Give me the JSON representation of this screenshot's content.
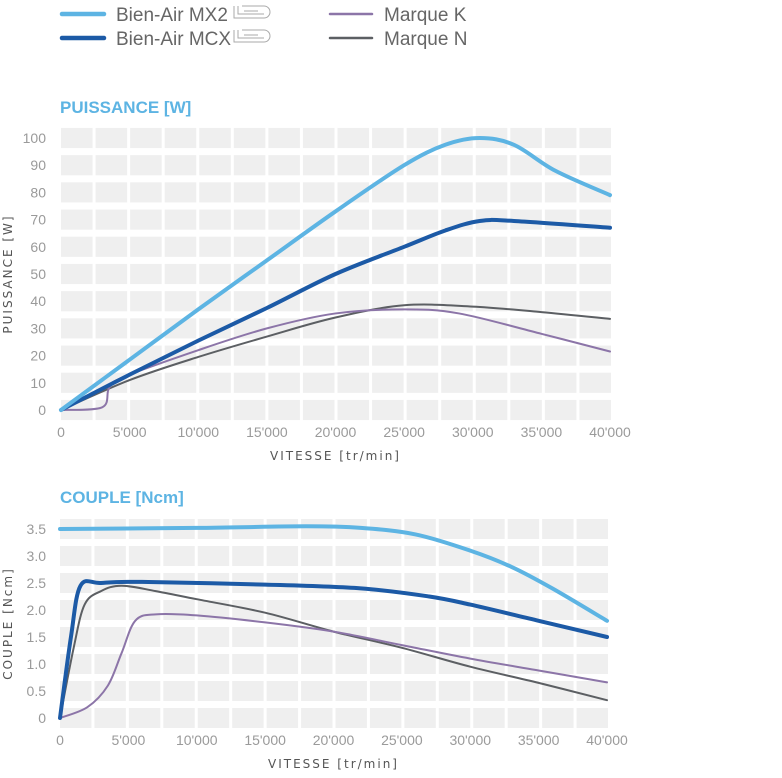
{
  "legend": [
    {
      "label": "Bien-Air MX2",
      "color": "#5db4e3",
      "width": 4,
      "led": true
    },
    {
      "label": "Bien-Air MCX",
      "color": "#1c5aa6",
      "width": 4,
      "led": true
    },
    {
      "label": "Marque K",
      "color": "#8c75a8",
      "width": 2
    },
    {
      "label": "Marque N",
      "color": "#5c5f63",
      "width": 2
    }
  ],
  "chart_data": [
    {
      "type": "line",
      "title": "PUISSANCE [W]",
      "ylabel": "PUISSANCE [W]",
      "xlabel": "VITESSE [tr/min]",
      "xlim": [
        0,
        40000
      ],
      "ylim": [
        0,
        100
      ],
      "yticks": [
        0,
        10,
        20,
        30,
        40,
        50,
        60,
        70,
        80,
        90,
        100
      ],
      "yticklabels": [
        "0",
        "10",
        "20",
        "30",
        "40",
        "50",
        "60",
        "70",
        "80",
        "90",
        "100"
      ],
      "xticks": [
        0,
        5000,
        10000,
        15000,
        20000,
        25000,
        30000,
        35000,
        40000
      ],
      "xticklabels": [
        "0",
        "5'000",
        "10'000",
        "15'000",
        "20'000",
        "25'000",
        "30'000",
        "35'000",
        "40'000"
      ],
      "series": [
        {
          "name": "Bien-Air MX2",
          "points": [
            [
              0,
              0
            ],
            [
              5000,
              18.5
            ],
            [
              10000,
              37
            ],
            [
              15000,
              55
            ],
            [
              20000,
              73
            ],
            [
              25000,
              90
            ],
            [
              28000,
              97.5
            ],
            [
              30500,
              100
            ],
            [
              33000,
              97.5
            ],
            [
              36000,
              88
            ],
            [
              40000,
              79
            ]
          ]
        },
        {
          "name": "Bien-Air MCX",
          "points": [
            [
              0,
              0
            ],
            [
              5000,
              13
            ],
            [
              10000,
              25.5
            ],
            [
              15000,
              37.5
            ],
            [
              20000,
              50
            ],
            [
              25000,
              60
            ],
            [
              28000,
              66
            ],
            [
              30500,
              69.5
            ],
            [
              33000,
              69.5
            ],
            [
              40000,
              67
            ]
          ]
        },
        {
          "name": "Marque K",
          "points": [
            [
              0,
              0
            ],
            [
              3000,
              1
            ],
            [
              3500,
              8
            ],
            [
              4500,
              12
            ],
            [
              10000,
              22
            ],
            [
              15000,
              30
            ],
            [
              20000,
              35.5
            ],
            [
              25000,
              37
            ],
            [
              29000,
              35.5
            ],
            [
              35000,
              28
            ],
            [
              40000,
              21.5
            ]
          ]
        },
        {
          "name": "Marque N",
          "points": [
            [
              0,
              0
            ],
            [
              5000,
              11
            ],
            [
              10000,
              19.5
            ],
            [
              15000,
              27
            ],
            [
              20000,
              34
            ],
            [
              25000,
              38.5
            ],
            [
              30000,
              38
            ],
            [
              35000,
              36
            ],
            [
              40000,
              33.5
            ]
          ]
        }
      ]
    },
    {
      "type": "line",
      "title": "COUPLE [Ncm]",
      "ylabel": "COUPLE [Ncm]",
      "xlabel": "VITESSE [tr/min]",
      "xlim": [
        0,
        40000
      ],
      "ylim": [
        0,
        3.5
      ],
      "yticks": [
        0,
        0.5,
        1,
        1.5,
        2,
        2.5,
        3,
        3.5
      ],
      "yticklabels": [
        "0",
        "0.5",
        "1.0",
        "1.5",
        "2.0",
        "2.5",
        "3.0",
        "3.5"
      ],
      "xticks": [
        0,
        5000,
        10000,
        15000,
        20000,
        25000,
        30000,
        35000,
        40000
      ],
      "xticklabels": [
        "0",
        "5'000",
        "10'000",
        "15'000",
        "20'000",
        "25'000",
        "30'000",
        "35'000",
        "40'000"
      ],
      "series": [
        {
          "name": "Bien-Air MX2",
          "points": [
            [
              0,
              3.5
            ],
            [
              10000,
              3.52
            ],
            [
              18000,
              3.55
            ],
            [
              22000,
              3.52
            ],
            [
              26000,
              3.4
            ],
            [
              30000,
              3.1
            ],
            [
              33000,
              2.8
            ],
            [
              36000,
              2.4
            ],
            [
              40000,
              1.8
            ]
          ]
        },
        {
          "name": "Bien-Air MCX",
          "points": [
            [
              0,
              0
            ],
            [
              800,
              1.5
            ],
            [
              1500,
              2.45
            ],
            [
              3000,
              2.5
            ],
            [
              6000,
              2.52
            ],
            [
              15000,
              2.47
            ],
            [
              22000,
              2.4
            ],
            [
              27000,
              2.25
            ],
            [
              30000,
              2.1
            ],
            [
              35000,
              1.8
            ],
            [
              40000,
              1.5
            ]
          ]
        },
        {
          "name": "Marque K",
          "points": [
            [
              0,
              0
            ],
            [
              2000,
              0.2
            ],
            [
              3500,
              0.6
            ],
            [
              4500,
              1.2
            ],
            [
              5500,
              1.8
            ],
            [
              7000,
              1.92
            ],
            [
              10000,
              1.9
            ],
            [
              15000,
              1.77
            ],
            [
              20000,
              1.6
            ],
            [
              25000,
              1.35
            ],
            [
              30000,
              1.1
            ],
            [
              35000,
              0.88
            ],
            [
              40000,
              0.66
            ]
          ]
        },
        {
          "name": "Marque N",
          "points": [
            [
              0,
              0
            ],
            [
              1000,
              1.3
            ],
            [
              1800,
              2.1
            ],
            [
              3000,
              2.35
            ],
            [
              4500,
              2.45
            ],
            [
              7000,
              2.35
            ],
            [
              10000,
              2.2
            ],
            [
              15000,
              1.95
            ],
            [
              20000,
              1.6
            ],
            [
              25000,
              1.3
            ],
            [
              30000,
              0.95
            ],
            [
              35000,
              0.65
            ],
            [
              40000,
              0.33
            ]
          ]
        }
      ]
    }
  ]
}
